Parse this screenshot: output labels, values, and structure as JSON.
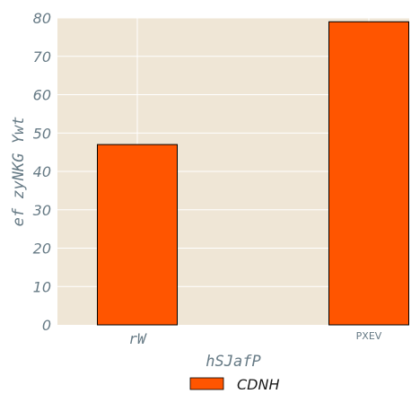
{
  "chart_data": {
    "type": "bar",
    "categories": [
      "rW",
      "PXEV"
    ],
    "series": [
      {
        "name": "CDNH",
        "values": [
          47,
          79
        ],
        "color": "#ff5500"
      }
    ],
    "xlabel": "hSJafP",
    "ylabel": "ef zyNKG Ywt",
    "ylim": [
      0,
      80
    ],
    "yticks": [
      0,
      10,
      20,
      30,
      40,
      50,
      60,
      70,
      80
    ],
    "grid": true,
    "background": "#efe6d6",
    "legend_position": "bottom-center"
  }
}
